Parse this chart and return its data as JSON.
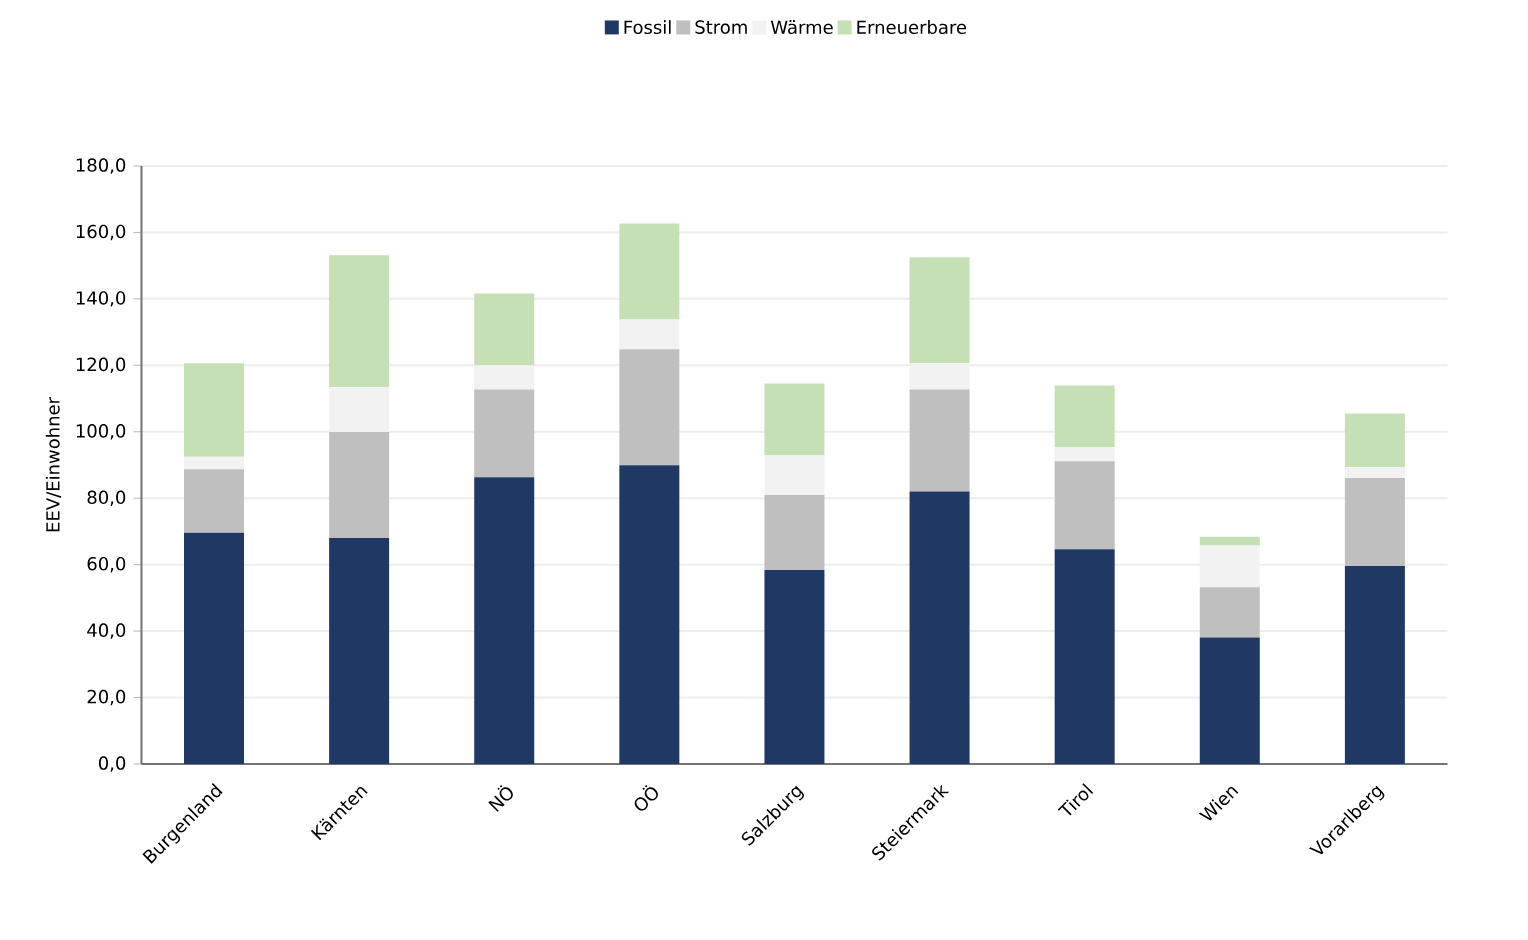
{
  "chart_data": {
    "type": "bar",
    "stacked": true,
    "ylabel": "EEV/Einwohner",
    "categories": [
      "Burgenland",
      "Kärnten",
      "NÖ",
      "OÖ",
      "Salzburg",
      "Steiermark",
      "Tirol",
      "Wien",
      "Vorarlberg"
    ],
    "series": [
      {
        "name": "Fossil",
        "color": "#1f3864",
        "values": [
          69.6,
          68.0,
          86.3,
          89.9,
          58.4,
          82.0,
          64.6,
          38.1,
          59.6
        ]
      },
      {
        "name": "Strom",
        "color": "#bfbfbf",
        "values": [
          19.1,
          31.9,
          26.4,
          34.9,
          22.6,
          30.7,
          26.5,
          15.1,
          26.5
        ]
      },
      {
        "name": "Wärme",
        "color": "#f2f2f2",
        "values": [
          3.8,
          13.6,
          7.3,
          9.0,
          11.9,
          7.9,
          4.2,
          12.6,
          3.2
        ]
      },
      {
        "name": "Erneuerbare",
        "color": "#c5e0b4",
        "values": [
          28.1,
          39.6,
          21.6,
          28.9,
          21.6,
          31.9,
          18.6,
          2.6,
          16.2
        ]
      }
    ],
    "ylim": [
      0,
      180
    ],
    "yticks": [
      {
        "value": 0,
        "label": "0,0"
      },
      {
        "value": 20,
        "label": "20,0"
      },
      {
        "value": 40,
        "label": "40,0"
      },
      {
        "value": 60,
        "label": "60,0"
      },
      {
        "value": 80,
        "label": "80,0"
      },
      {
        "value": 100,
        "label": "100,0"
      },
      {
        "value": 120,
        "label": "120,0"
      },
      {
        "value": 140,
        "label": "140,0"
      },
      {
        "value": 160,
        "label": "160,0"
      },
      {
        "value": 180,
        "label": "180,0"
      }
    ],
    "grid": "y",
    "legend": "top"
  }
}
